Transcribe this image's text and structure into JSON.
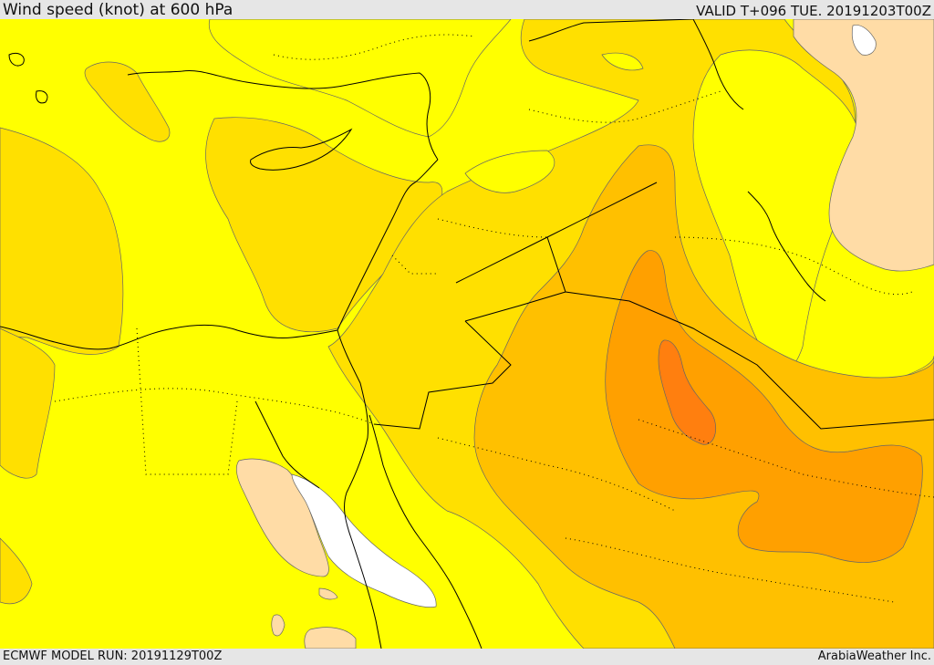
{
  "header": {
    "title": "Wind speed (knot) at 600 hPa",
    "valid_time": "VALID T+096 TUE. 20191203T00Z"
  },
  "footer": {
    "model_run": "ECMWF MODEL RUN: 20191129T00Z",
    "credit": "ArabiaWeather Inc."
  },
  "map": {
    "type": "filled-contour wind speed map",
    "colors": {
      "background_band": "#ffff00",
      "band_light_orange": "#ffe000",
      "band_orange": "#ffc000",
      "band_dark_orange": "#ffa000",
      "band_deep_orange": "#ff7f0f",
      "band_peach": "#ffdca6",
      "band_white": "#ffffff",
      "coastline": "#000000",
      "contour_line": "#666666",
      "chrome_background": "#e6e6e6"
    }
  }
}
